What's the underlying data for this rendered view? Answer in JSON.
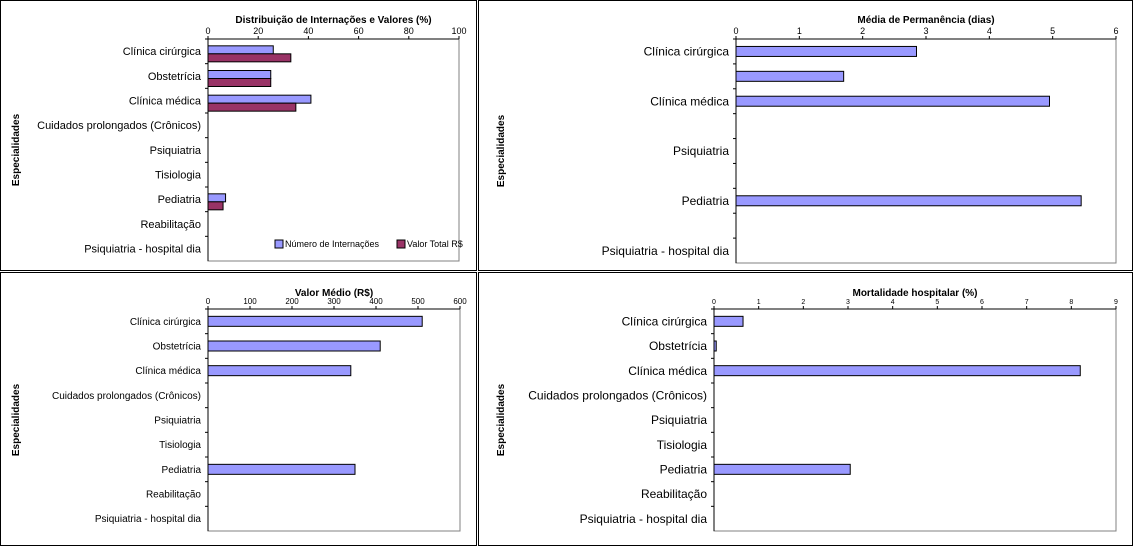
{
  "colors": {
    "series1": "#9999ff",
    "series2": "#993366",
    "stroke": "#000000"
  },
  "chart_data": [
    {
      "type": "bar",
      "orientation": "horizontal",
      "title": "Distribuição de Internações e Valores (%)",
      "ylabel": "Especialidades",
      "xlim": [
        0,
        100
      ],
      "xticks": [
        "0",
        "20",
        "40",
        "60",
        "80",
        "100"
      ],
      "categories": [
        "Clínica cirúrgica",
        "Obstetrícia",
        "Clínica médica",
        "Cuidados prolongados (Crônicos)",
        "Psiquiatria",
        "Tisiologia",
        "Pediatria",
        "Reabilitação",
        "Psiquiatria - hospital dia"
      ],
      "series": [
        {
          "name": "Número de Internações",
          "values": [
            26,
            25,
            41,
            0,
            0,
            0,
            7,
            0,
            0
          ]
        },
        {
          "name": "Valor Total R$",
          "values": [
            33,
            25,
            35,
            0,
            0,
            0,
            6,
            0,
            0
          ]
        }
      ],
      "legend": "bottom-right"
    },
    {
      "type": "bar",
      "orientation": "horizontal",
      "title": "Média de Permanência (dias)",
      "ylabel": "Especialidades",
      "xlim": [
        0,
        6
      ],
      "xticks": [
        "0",
        "1",
        "2",
        "3",
        "4",
        "5",
        "6"
      ],
      "categories": [
        "Clínica cirúrgica",
        "",
        "Clínica médica",
        "",
        "Psiquiatria",
        "",
        "Pediatria",
        "",
        "Psiquiatria - hospital dia"
      ],
      "series": [
        {
          "values": [
            2.85,
            1.7,
            4.95,
            0,
            0,
            0,
            5.45,
            0,
            0
          ]
        }
      ]
    },
    {
      "type": "bar",
      "orientation": "horizontal",
      "title": "Valor Médio (R$)",
      "ylabel": "Especialidades",
      "xlim": [
        0,
        600
      ],
      "xticks": [
        "0",
        "100",
        "200",
        "300",
        "400",
        "500",
        "600"
      ],
      "categories": [
        "Clínica cirúrgica",
        "Obstetrícia",
        "Clínica médica",
        "Cuidados prolongados (Crônicos)",
        "Psiquiatria",
        "Tisiologia",
        "Pediatria",
        "Reabilitação",
        "Psiquiatria - hospital dia"
      ],
      "series": [
        {
          "values": [
            510,
            410,
            340,
            0,
            0,
            0,
            350,
            0,
            0
          ]
        }
      ]
    },
    {
      "type": "bar",
      "orientation": "horizontal",
      "title": "Mortalidade hospitalar (%)",
      "ylabel": "Especialidades",
      "xlim": [
        0,
        9
      ],
      "xticks": [
        "0",
        "1",
        "2",
        "3",
        "4",
        "5",
        "6",
        "7",
        "8",
        "9"
      ],
      "categories": [
        "Clínica cirúrgica",
        "Obstetrícia",
        "Clínica médica",
        "Cuidados prolongados (Crônicos)",
        "Psiquiatria",
        "Tisiologia",
        "Pediatria",
        "Reabilitação",
        "Psiquiatria - hospital dia"
      ],
      "series": [
        {
          "values": [
            0.65,
            0.05,
            8.2,
            0,
            0,
            0,
            3.05,
            0,
            0
          ]
        }
      ]
    }
  ]
}
